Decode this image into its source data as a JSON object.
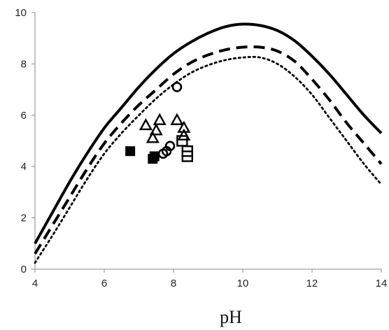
{
  "chart_data": {
    "type": "scatter",
    "title": "",
    "xlabel": "pH",
    "ylabel": "",
    "xlim": [
      4,
      14
    ],
    "ylim": [
      0,
      10
    ],
    "xticks": [
      4,
      6,
      8,
      10,
      12,
      14
    ],
    "yticks": [
      0,
      2,
      4,
      6,
      8,
      10
    ],
    "grid": false,
    "legend": "none",
    "series": [
      {
        "type": "line",
        "style": "solid",
        "color": "#000000",
        "x": [
          4,
          4.5,
          5,
          5.5,
          6,
          6.5,
          7,
          7.5,
          8,
          8.5,
          9,
          9.5,
          10,
          10.5,
          11,
          11.5,
          12,
          12.5,
          13,
          13.5,
          14
        ],
        "y": [
          1.0,
          2.2,
          3.4,
          4.5,
          5.5,
          6.3,
          7.1,
          7.8,
          8.4,
          8.85,
          9.2,
          9.45,
          9.55,
          9.5,
          9.3,
          8.9,
          8.3,
          7.6,
          6.8,
          6.0,
          5.3
        ]
      },
      {
        "type": "line",
        "style": "dashed",
        "color": "#000000",
        "x": [
          4,
          4.5,
          5,
          5.5,
          6,
          6.5,
          7,
          7.5,
          8,
          8.5,
          9,
          9.5,
          10,
          10.5,
          11,
          11.5,
          12,
          12.5,
          13,
          13.5,
          14
        ],
        "y": [
          0.6,
          1.7,
          2.8,
          3.9,
          4.9,
          5.7,
          6.4,
          7.0,
          7.6,
          8.05,
          8.35,
          8.55,
          8.65,
          8.65,
          8.5,
          8.1,
          7.4,
          6.6,
          5.7,
          4.9,
          4.1
        ]
      },
      {
        "type": "line",
        "style": "dotted",
        "color": "#000000",
        "x": [
          4,
          4.5,
          5,
          5.5,
          6,
          6.5,
          7,
          7.5,
          8,
          8.5,
          9,
          9.5,
          10,
          10.5,
          11,
          11.5,
          12,
          12.5,
          13,
          13.5,
          14
        ],
        "y": [
          0.25,
          1.3,
          2.4,
          3.5,
          4.5,
          5.3,
          6.0,
          6.65,
          7.2,
          7.65,
          7.95,
          8.15,
          8.25,
          8.25,
          8.0,
          7.5,
          6.8,
          5.9,
          5.0,
          4.1,
          3.3
        ]
      },
      {
        "type": "scatter",
        "marker": "triangle",
        "x": [
          7.2,
          7.4,
          7.5,
          7.6,
          8.1,
          8.3,
          8.3
        ],
        "y": [
          5.6,
          5.1,
          5.4,
          5.8,
          5.8,
          5.5,
          5.2
        ]
      },
      {
        "type": "scatter",
        "marker": "circle",
        "x": [
          8.1,
          7.9,
          7.8,
          7.7
        ],
        "y": [
          7.1,
          4.8,
          4.6,
          4.5
        ]
      },
      {
        "type": "scatter",
        "marker": "filled-square",
        "x": [
          6.75,
          7.4,
          7.45
        ],
        "y": [
          4.6,
          4.3,
          4.4
        ]
      },
      {
        "type": "scatter",
        "marker": "open-square",
        "x": [
          8.25,
          8.4,
          8.4
        ],
        "y": [
          5.0,
          4.6,
          4.4
        ]
      }
    ]
  }
}
